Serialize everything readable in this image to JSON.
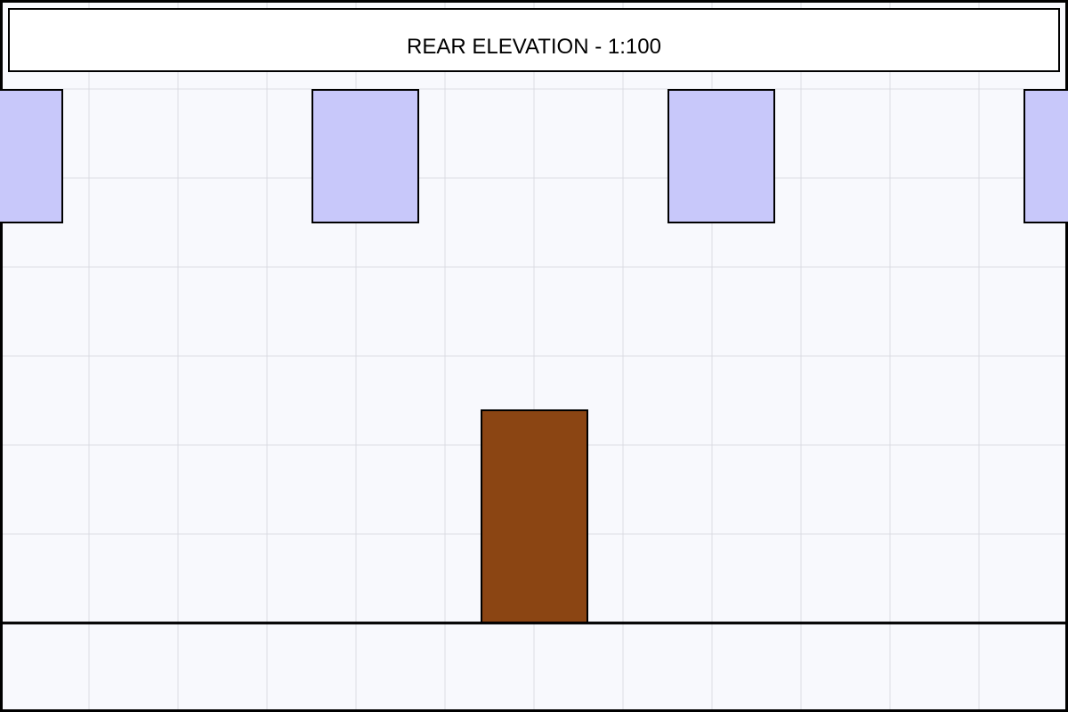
{
  "drawing": {
    "title": "REAR ELEVATION - 1:100",
    "colors": {
      "background": "#f8f9fd",
      "grid": "#dcdde3",
      "window_fill": "#c8c8fa",
      "door_fill": "#8b4513",
      "outline": "#000000"
    },
    "elements": {
      "windows": 4,
      "doors": 1
    }
  }
}
